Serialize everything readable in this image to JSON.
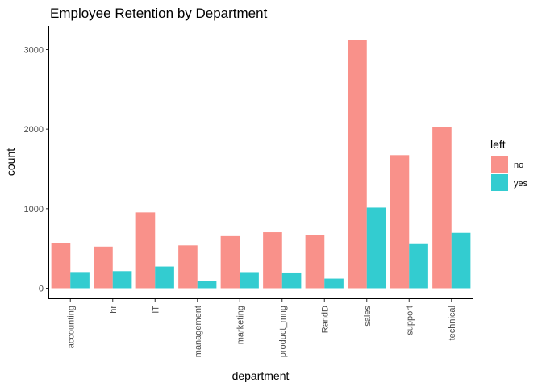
{
  "chart_data": {
    "type": "bar",
    "title": "Employee Retention by Department",
    "xlabel": "department",
    "ylabel": "count",
    "ylim": [
      0,
      3300
    ],
    "yticks": [
      0,
      1000,
      2000,
      3000
    ],
    "grid": false,
    "legend_position": "right",
    "categories": [
      "accounting",
      "hr",
      "IT",
      "management",
      "marketing",
      "product_mng",
      "RandD",
      "sales",
      "support",
      "technical"
    ],
    "legend": {
      "title": "left"
    },
    "series": [
      {
        "name": "no",
        "color": "#F8766D",
        "values": [
          563,
          524,
          954,
          539,
          655,
          704,
          666,
          3126,
          1674,
          2023
        ]
      },
      {
        "name": "yes",
        "color": "#00BFC4",
        "values": [
          204,
          215,
          273,
          91,
          203,
          198,
          121,
          1014,
          555,
          697
        ]
      }
    ]
  }
}
